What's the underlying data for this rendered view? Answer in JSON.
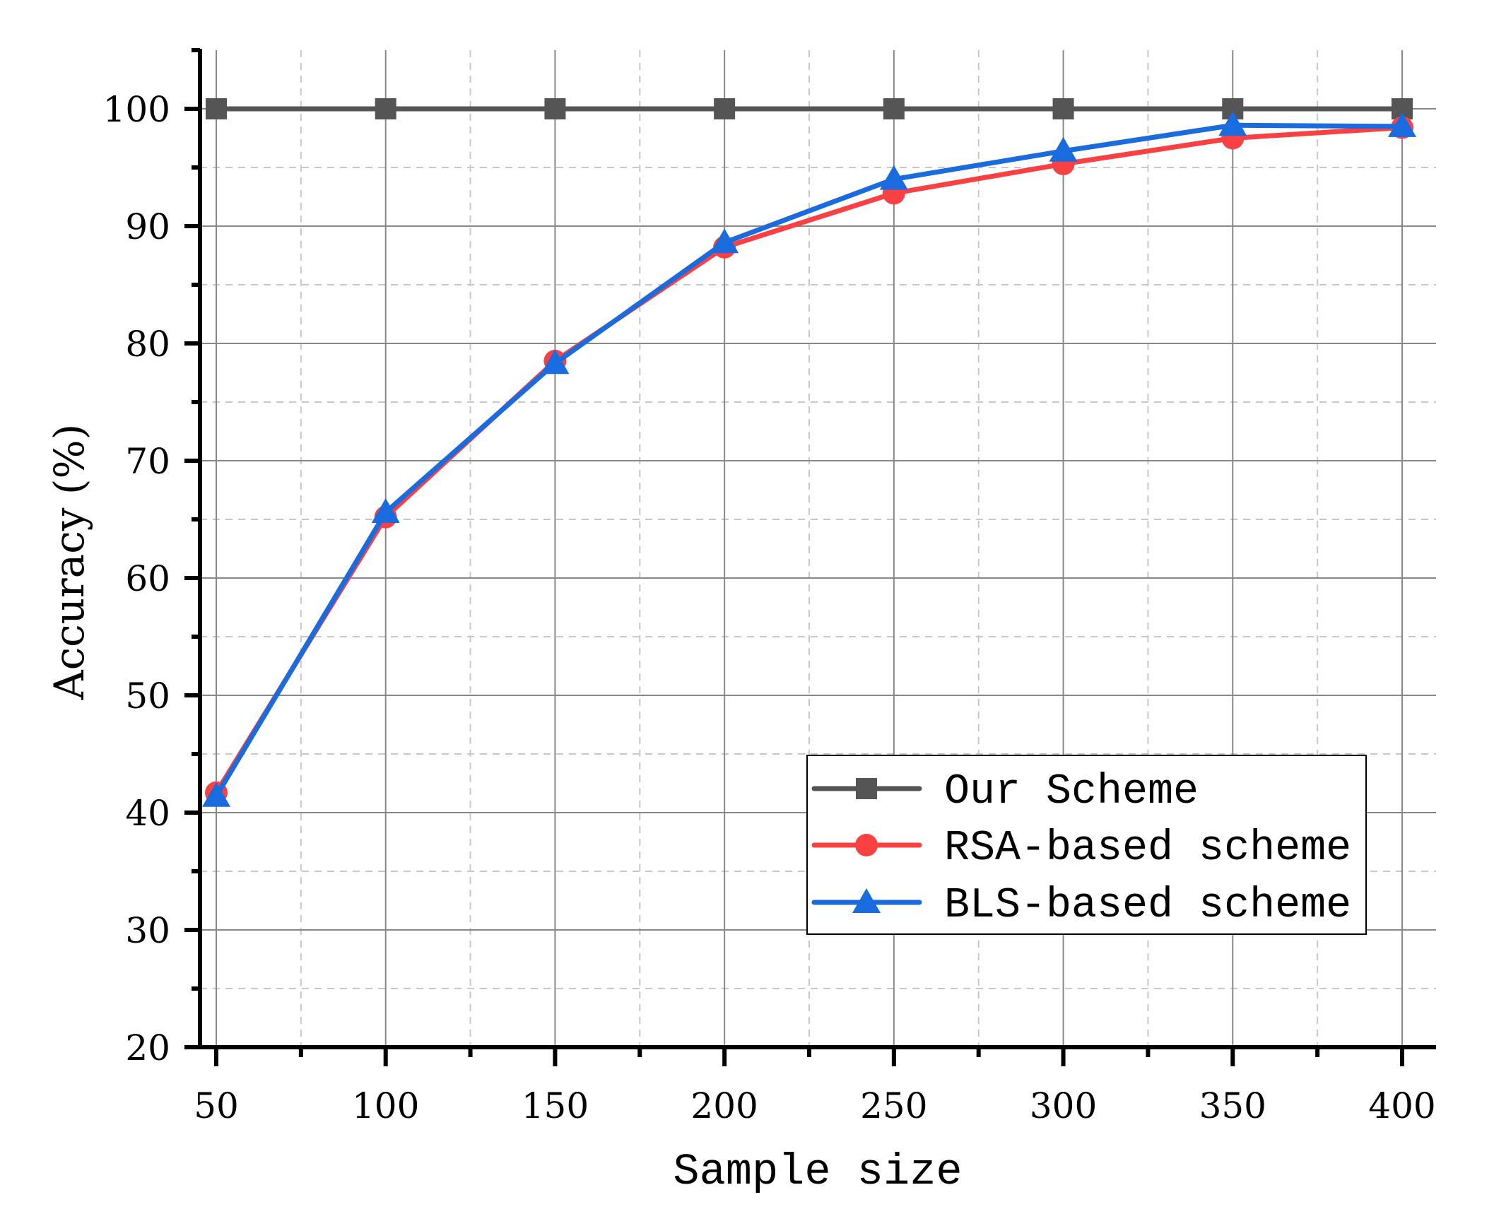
{
  "chart_data": {
    "type": "line",
    "title": "",
    "xlabel": "Sample size",
    "ylabel": "Accuracy (%)",
    "x": [
      50,
      100,
      150,
      200,
      250,
      300,
      350,
      400
    ],
    "xlim": [
      45,
      410
    ],
    "ylim": [
      20,
      105
    ],
    "xticks": [
      50,
      100,
      150,
      200,
      250,
      300,
      350,
      400
    ],
    "yticks": [
      20,
      30,
      40,
      50,
      60,
      70,
      80,
      90,
      100
    ],
    "x_minor_step": 25,
    "y_minor_step": 5,
    "grid": true,
    "legend_position": "lower right",
    "series": [
      {
        "name": "Our Scheme",
        "marker": "square",
        "color": "#555555",
        "values": [
          100,
          100,
          100,
          100,
          100,
          100,
          100,
          100
        ]
      },
      {
        "name": "RSA-based scheme",
        "marker": "circle",
        "color": "#F94144",
        "values": [
          41.7,
          65.2,
          78.5,
          88.2,
          92.8,
          95.3,
          97.5,
          98.4
        ]
      },
      {
        "name": "BLS-based scheme",
        "marker": "triangle",
        "color": "#1A6BDE",
        "values": [
          41.4,
          65.6,
          78.3,
          88.6,
          94.0,
          96.4,
          98.6,
          98.5
        ]
      }
    ]
  },
  "labels": {
    "xlabel": "Sample size",
    "ylabel": "Accuracy (%)"
  }
}
